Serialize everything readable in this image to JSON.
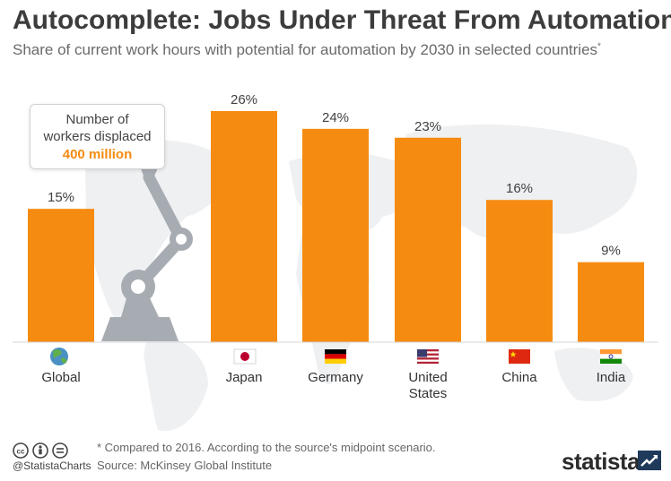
{
  "title": "Autocomplete: Jobs Under Threat From Automation",
  "subtitle": "Share of current work hours with potential for automation by 2030 in selected countries",
  "subtitle_mark": "*",
  "callout": {
    "line1": "Number of",
    "line2": "workers displaced",
    "value": "400 million"
  },
  "chart_data": {
    "type": "bar",
    "categories": [
      "Global",
      "Japan",
      "Germany",
      "United States",
      "China",
      "India"
    ],
    "values": [
      15,
      26,
      24,
      23,
      16,
      9
    ],
    "value_labels": [
      "15%",
      "26%",
      "24%",
      "23%",
      "16%",
      "9%"
    ],
    "unit": "%",
    "ylim": [
      0,
      26
    ],
    "grid": false,
    "bar_color": "#f68b11",
    "category_icons": [
      "globe-icon",
      "japan-flag-icon",
      "germany-flag-icon",
      "usa-flag-icon",
      "china-flag-icon",
      "india-flag-icon"
    ]
  },
  "footer": {
    "handle": "@StatistaCharts",
    "note": "* Compared to 2016. According to the source's midpoint scenario.",
    "source": "Source: McKinsey Global Institute",
    "brand": "statista"
  },
  "colors": {
    "bar": "#f68b11",
    "accent_text": "#f68b11",
    "title": "#3c3c3c",
    "robot_arm": "#a7acb2",
    "brand_dark": "#1f3a5a"
  }
}
